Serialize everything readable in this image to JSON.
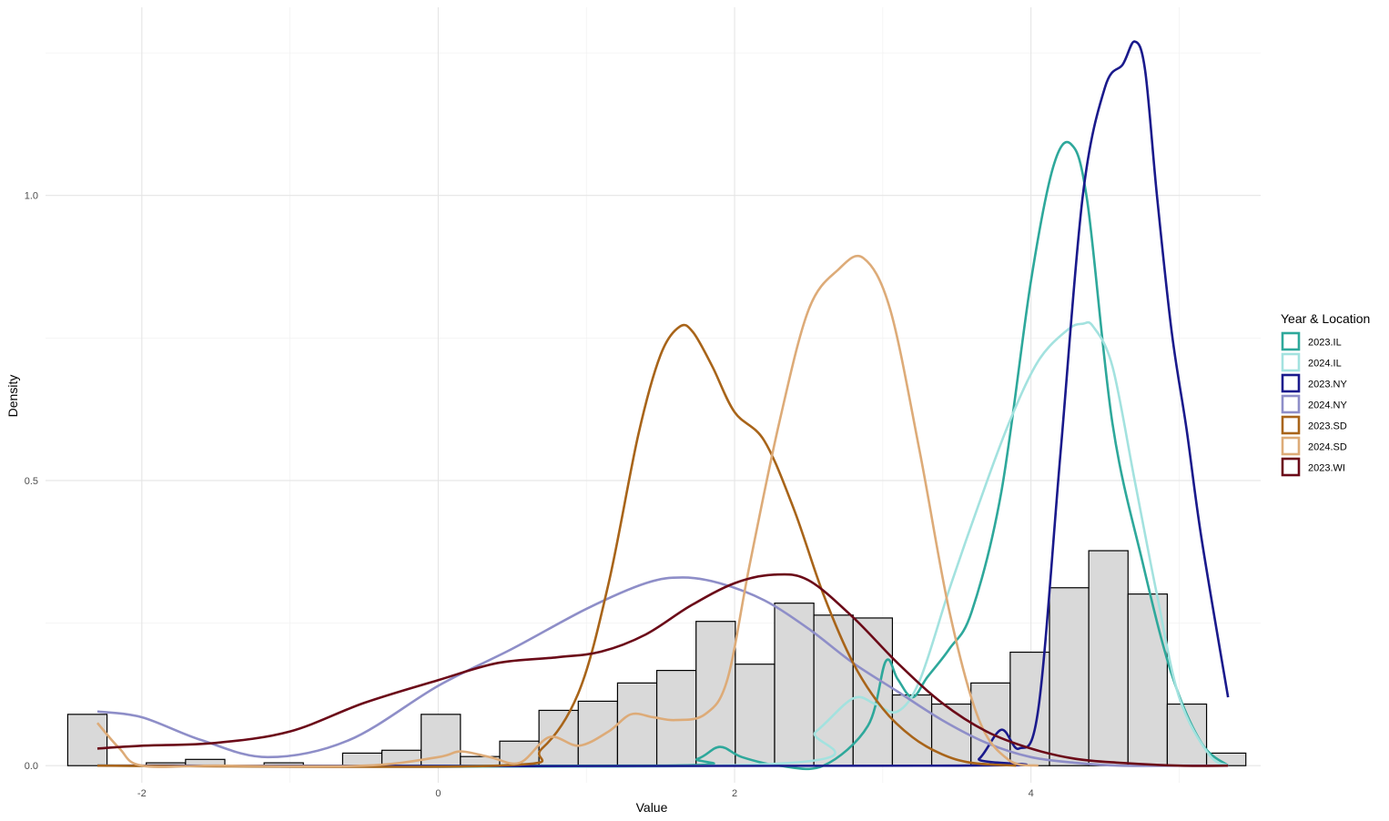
{
  "chart_data": {
    "type": "histogram-density",
    "xlabel": "Value",
    "ylabel": "Density",
    "xlim": [
      -2.65,
      5.55
    ],
    "ylim": [
      -0.03,
      1.33
    ],
    "x_ticks": [
      {
        "value": -2,
        "label": "-2"
      },
      {
        "value": 0,
        "label": "0"
      },
      {
        "value": 2,
        "label": "2"
      },
      {
        "value": 4,
        "label": "4"
      }
    ],
    "y_ticks": [
      {
        "value": 0.0,
        "label": "0.0"
      },
      {
        "value": 0.5,
        "label": "0.5"
      },
      {
        "value": 1.0,
        "label": "1.0"
      }
    ],
    "x_minor_grid": [
      -1,
      1,
      3,
      5
    ],
    "y_minor_grid": [
      0.25,
      0.75,
      1.25
    ],
    "grid": true,
    "legend": {
      "title": "Year & Location",
      "position": "right"
    },
    "histogram": {
      "fill": "#d9d9d9",
      "stroke": "#000000",
      "bins": [
        {
          "x0": -2.5,
          "x1": -2.235,
          "density": 0.09
        },
        {
          "x0": -2.235,
          "x1": -1.97,
          "density": 0.0
        },
        {
          "x0": -1.97,
          "x1": -1.705,
          "density": 0.005
        },
        {
          "x0": -1.705,
          "x1": -1.44,
          "density": 0.011
        },
        {
          "x0": -1.44,
          "x1": -1.175,
          "density": 0.0
        },
        {
          "x0": -1.175,
          "x1": -0.91,
          "density": 0.005
        },
        {
          "x0": -0.91,
          "x1": -0.645,
          "density": 0.0
        },
        {
          "x0": -0.645,
          "x1": -0.38,
          "density": 0.022
        },
        {
          "x0": -0.38,
          "x1": -0.115,
          "density": 0.027
        },
        {
          "x0": -0.115,
          "x1": 0.15,
          "density": 0.09
        },
        {
          "x0": 0.15,
          "x1": 0.415,
          "density": 0.016
        },
        {
          "x0": 0.415,
          "x1": 0.68,
          "density": 0.043
        },
        {
          "x0": 0.68,
          "x1": 0.945,
          "density": 0.097
        },
        {
          "x0": 0.945,
          "x1": 1.21,
          "density": 0.113
        },
        {
          "x0": 1.21,
          "x1": 1.475,
          "density": 0.145
        },
        {
          "x0": 1.475,
          "x1": 1.74,
          "density": 0.167
        },
        {
          "x0": 1.74,
          "x1": 2.005,
          "density": 0.253
        },
        {
          "x0": 2.005,
          "x1": 2.27,
          "density": 0.178
        },
        {
          "x0": 2.27,
          "x1": 2.535,
          "density": 0.285
        },
        {
          "x0": 2.535,
          "x1": 2.8,
          "density": 0.264
        },
        {
          "x0": 2.8,
          "x1": 3.065,
          "density": 0.259
        },
        {
          "x0": 3.065,
          "x1": 3.33,
          "density": 0.124
        },
        {
          "x0": 3.33,
          "x1": 3.595,
          "density": 0.108
        },
        {
          "x0": 3.595,
          "x1": 3.86,
          "density": 0.145
        },
        {
          "x0": 3.86,
          "x1": 4.125,
          "density": 0.199
        },
        {
          "x0": 4.125,
          "x1": 4.39,
          "density": 0.312
        },
        {
          "x0": 4.39,
          "x1": 4.655,
          "density": 0.377
        },
        {
          "x0": 4.655,
          "x1": 4.92,
          "density": 0.301
        },
        {
          "x0": 4.92,
          "x1": 5.185,
          "density": 0.108
        },
        {
          "x0": 5.185,
          "x1": 5.45,
          "density": 0.022
        }
      ]
    },
    "series": [
      {
        "name": "2023.IL",
        "color": "#2ea89b",
        "x": [
          -2.3,
          1.5,
          1.75,
          1.9,
          2.05,
          2.3,
          2.6,
          2.9,
          3.02,
          3.1,
          3.2,
          3.3,
          3.45,
          3.6,
          3.8,
          4.0,
          4.15,
          4.27,
          4.38,
          4.55,
          4.75,
          4.95,
          5.15,
          5.33
        ],
        "values": [
          0.0,
          0.0,
          0.012,
          0.033,
          0.015,
          0.0,
          0.0,
          0.07,
          0.183,
          0.152,
          0.12,
          0.155,
          0.205,
          0.27,
          0.48,
          0.85,
          1.05,
          1.09,
          0.99,
          0.6,
          0.36,
          0.16,
          0.04,
          0.0
        ]
      },
      {
        "name": "2024.IL",
        "color": "#a3e2df",
        "x": [
          -2.3,
          2.25,
          2.55,
          2.8,
          2.95,
          3.1,
          3.25,
          3.45,
          3.65,
          3.85,
          4.05,
          4.25,
          4.35,
          4.42,
          4.55,
          4.7,
          4.85,
          5.0,
          5.2,
          5.33
        ],
        "values": [
          0.0,
          0.003,
          0.06,
          0.118,
          0.108,
          0.095,
          0.15,
          0.31,
          0.46,
          0.6,
          0.71,
          0.765,
          0.775,
          0.77,
          0.7,
          0.5,
          0.3,
          0.12,
          0.02,
          0.0
        ]
      },
      {
        "name": "2023.NY",
        "color": "#1a1a8c",
        "x": [
          -2.3,
          3.5,
          3.65,
          3.8,
          3.92,
          4.05,
          4.2,
          4.35,
          4.5,
          4.62,
          4.7,
          4.77,
          4.85,
          4.95,
          5.05,
          5.15,
          5.33
        ],
        "values": [
          0.0,
          0.0,
          0.012,
          0.063,
          0.03,
          0.1,
          0.55,
          1.0,
          1.19,
          1.23,
          1.27,
          1.22,
          1.0,
          0.76,
          0.59,
          0.4,
          0.12
        ]
      },
      {
        "name": "2024.NY",
        "color": "#8e8ec8",
        "x": [
          -2.3,
          -2.0,
          -1.6,
          -1.15,
          -0.6,
          0.0,
          0.5,
          1.0,
          1.4,
          1.65,
          1.9,
          2.2,
          2.5,
          2.8,
          3.1,
          3.4,
          3.7,
          4.0,
          4.3,
          4.6,
          5.0,
          5.33
        ],
        "values": [
          0.095,
          0.085,
          0.045,
          0.015,
          0.045,
          0.14,
          0.205,
          0.275,
          0.32,
          0.33,
          0.32,
          0.29,
          0.24,
          0.18,
          0.13,
          0.08,
          0.04,
          0.015,
          0.005,
          0.0,
          0.0,
          0.0
        ]
      },
      {
        "name": "2023.SD",
        "color": "#a86419",
        "x": [
          -2.3,
          0.4,
          0.7,
          0.95,
          1.15,
          1.35,
          1.5,
          1.63,
          1.72,
          1.85,
          2.0,
          2.2,
          2.4,
          2.6,
          2.8,
          3.0,
          3.2,
          3.4,
          3.6,
          3.9
        ],
        "values": [
          0.0,
          0.0,
          0.03,
          0.13,
          0.32,
          0.58,
          0.72,
          0.77,
          0.76,
          0.7,
          0.62,
          0.57,
          0.45,
          0.3,
          0.18,
          0.1,
          0.05,
          0.02,
          0.005,
          0.0
        ]
      },
      {
        "name": "2024.SD",
        "color": "#ddab78",
        "x": [
          -2.3,
          -2.15,
          -2.0,
          -1.5,
          -0.5,
          0.0,
          0.15,
          0.35,
          0.55,
          0.75,
          0.95,
          1.15,
          1.3,
          1.45,
          1.6,
          1.8,
          1.95,
          2.1,
          2.3,
          2.5,
          2.7,
          2.87,
          3.05,
          3.25,
          3.45,
          3.65,
          3.85,
          4.05
        ],
        "values": [
          0.075,
          0.03,
          0.0,
          0.0,
          0.0,
          0.015,
          0.025,
          0.015,
          0.005,
          0.05,
          0.035,
          0.06,
          0.09,
          0.085,
          0.08,
          0.09,
          0.15,
          0.35,
          0.6,
          0.8,
          0.87,
          0.89,
          0.8,
          0.55,
          0.27,
          0.08,
          0.01,
          0.0
        ]
      },
      {
        "name": "2023.WI",
        "color": "#6b0a18",
        "x": [
          -2.3,
          -2.0,
          -1.5,
          -1.0,
          -0.5,
          0.0,
          0.4,
          0.8,
          1.1,
          1.4,
          1.7,
          2.0,
          2.27,
          2.5,
          2.8,
          3.1,
          3.4,
          3.7,
          4.0,
          4.3,
          4.6,
          5.0,
          5.33
        ],
        "values": [
          0.03,
          0.035,
          0.04,
          0.06,
          0.11,
          0.15,
          0.18,
          0.19,
          0.2,
          0.23,
          0.28,
          0.32,
          0.335,
          0.325,
          0.26,
          0.18,
          0.11,
          0.06,
          0.03,
          0.012,
          0.005,
          0.0,
          0.0
        ]
      }
    ]
  }
}
